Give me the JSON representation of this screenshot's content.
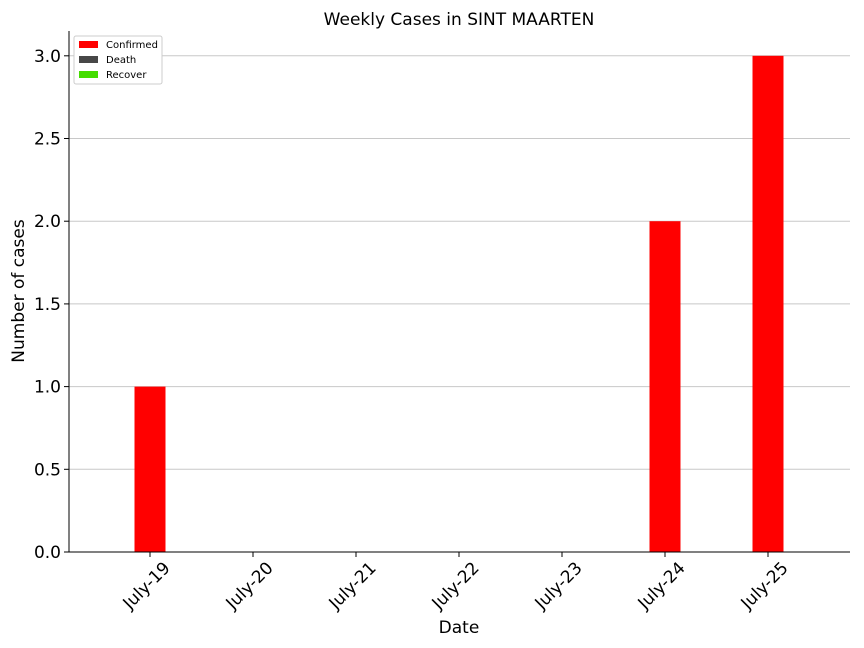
{
  "chart_data": {
    "type": "bar",
    "title": "Weekly Cases in SINT MAARTEN",
    "xlabel": "Date",
    "ylabel": "Number of cases",
    "categories": [
      "July-19",
      "July-20",
      "July-21",
      "July-22",
      "July-23",
      "July-24",
      "July-25"
    ],
    "series": [
      {
        "name": "Confirmed",
        "color": "#ff0000",
        "values": [
          1,
          0,
          0,
          0,
          0,
          2,
          3
        ]
      },
      {
        "name": "Death",
        "color": "#474747",
        "values": [
          0,
          0,
          0,
          0,
          0,
          0,
          0
        ]
      },
      {
        "name": "Recover",
        "color": "#44dd00",
        "values": [
          0,
          0,
          0,
          0,
          0,
          0,
          0
        ]
      }
    ],
    "ylim": [
      0,
      3.15
    ],
    "yticks": [
      "0.0",
      "0.5",
      "1.0",
      "1.5",
      "2.0",
      "2.5",
      "3.0"
    ],
    "grid": "horizontal",
    "legend": "top-left"
  }
}
